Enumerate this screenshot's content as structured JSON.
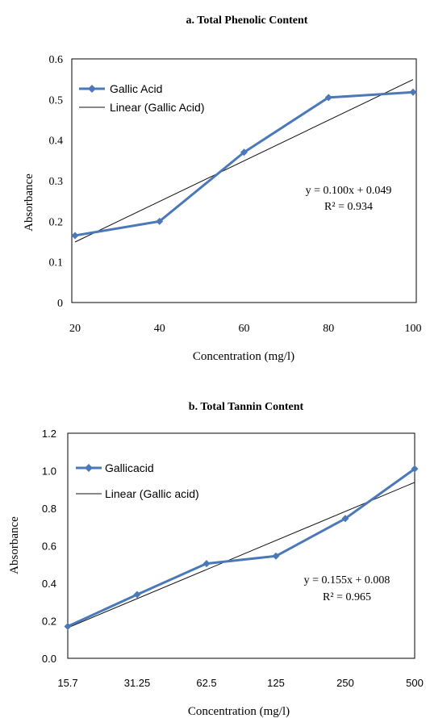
{
  "chart_data": [
    {
      "type": "line",
      "title": "a.   Total Phenolic Content",
      "xlabel": "Concentration (mg/l)",
      "ylabel": "Absorbance",
      "categories": [
        "20",
        "40",
        "60",
        "80",
        "100"
      ],
      "ylim": [
        0,
        0.6
      ],
      "yticks": [
        "0",
        "0.1",
        "0.2",
        "0.3",
        "0.4",
        "0.5",
        "0.6"
      ],
      "series": [
        {
          "name": "Gallic Acid",
          "values": [
            0.165,
            0.2,
            0.37,
            0.505,
            0.518
          ],
          "color": "#4a78b8"
        }
      ],
      "trendline": {
        "name": "Linear (Gallic Acid)",
        "start": 0.149,
        "end": 0.549,
        "color": "#111111"
      },
      "equation": "y = 0.100x + 0.049",
      "r_squared": "R² = 0.934",
      "grid": false,
      "legend_position": "top-left"
    },
    {
      "type": "line",
      "title": "b.    Total Tannin Content",
      "xlabel": "Concentration (mg/l)",
      "ylabel": "Absorbance",
      "categories": [
        "15.7",
        "31.25",
        "62.5",
        "125",
        "250",
        "500"
      ],
      "ylim": [
        0,
        1.2
      ],
      "yticks": [
        "0.0",
        "0.2",
        "0.4",
        "0.6",
        "0.8",
        "1.0",
        "1.2"
      ],
      "series": [
        {
          "name": "Gallicacid",
          "values": [
            0.17,
            0.34,
            0.505,
            0.545,
            0.745,
            1.01
          ],
          "color": "#4a78b8"
        }
      ],
      "trendline": {
        "name": "Linear (Gallic acid)",
        "start": 0.163,
        "end": 0.938,
        "color": "#111111"
      },
      "equation": "y = 0.155x + 0.008",
      "r_squared": "R² = 0.965",
      "grid": false,
      "legend_position": "top-left"
    }
  ]
}
